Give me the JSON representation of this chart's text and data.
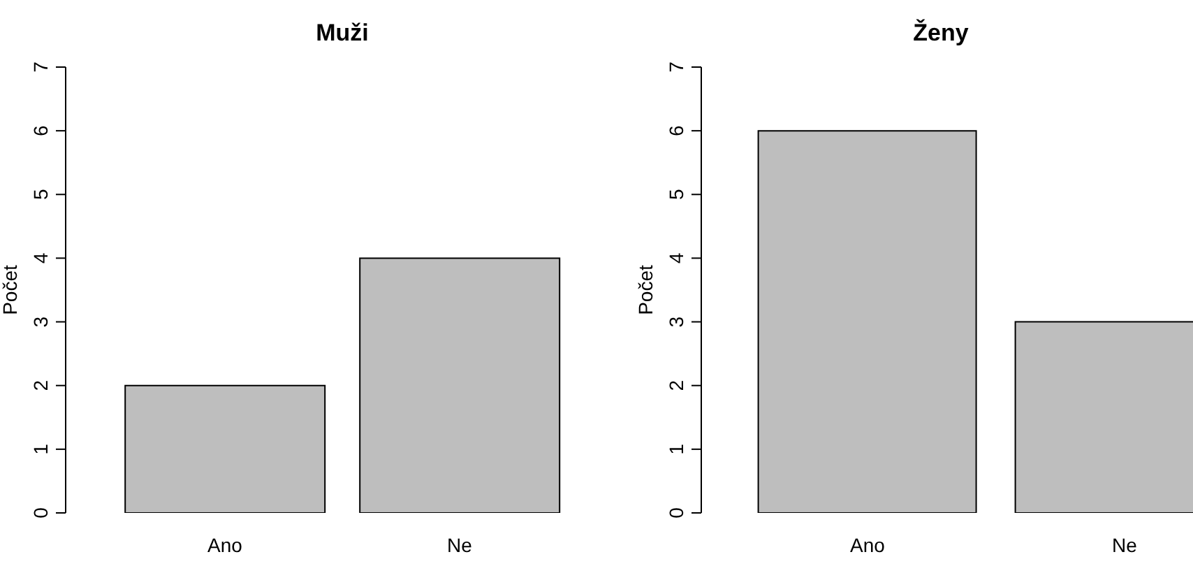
{
  "chart_data": [
    {
      "type": "bar",
      "title": "Muži",
      "ylabel": "Počet",
      "categories": [
        "Ano",
        "Ne"
      ],
      "values": [
        2,
        4
      ],
      "color": "#bebebe",
      "ylim": [
        0,
        7
      ],
      "yticks": [
        0,
        1,
        2,
        3,
        4,
        5,
        6,
        7
      ]
    },
    {
      "type": "bar",
      "title": "Ženy",
      "ylabel": "Počet",
      "categories": [
        "Ano",
        "Ne"
      ],
      "values": [
        6,
        3
      ],
      "color": "#bebebe",
      "ylim": [
        0,
        7
      ],
      "yticks": [
        0,
        1,
        2,
        3,
        4,
        5,
        6,
        7
      ]
    }
  ]
}
